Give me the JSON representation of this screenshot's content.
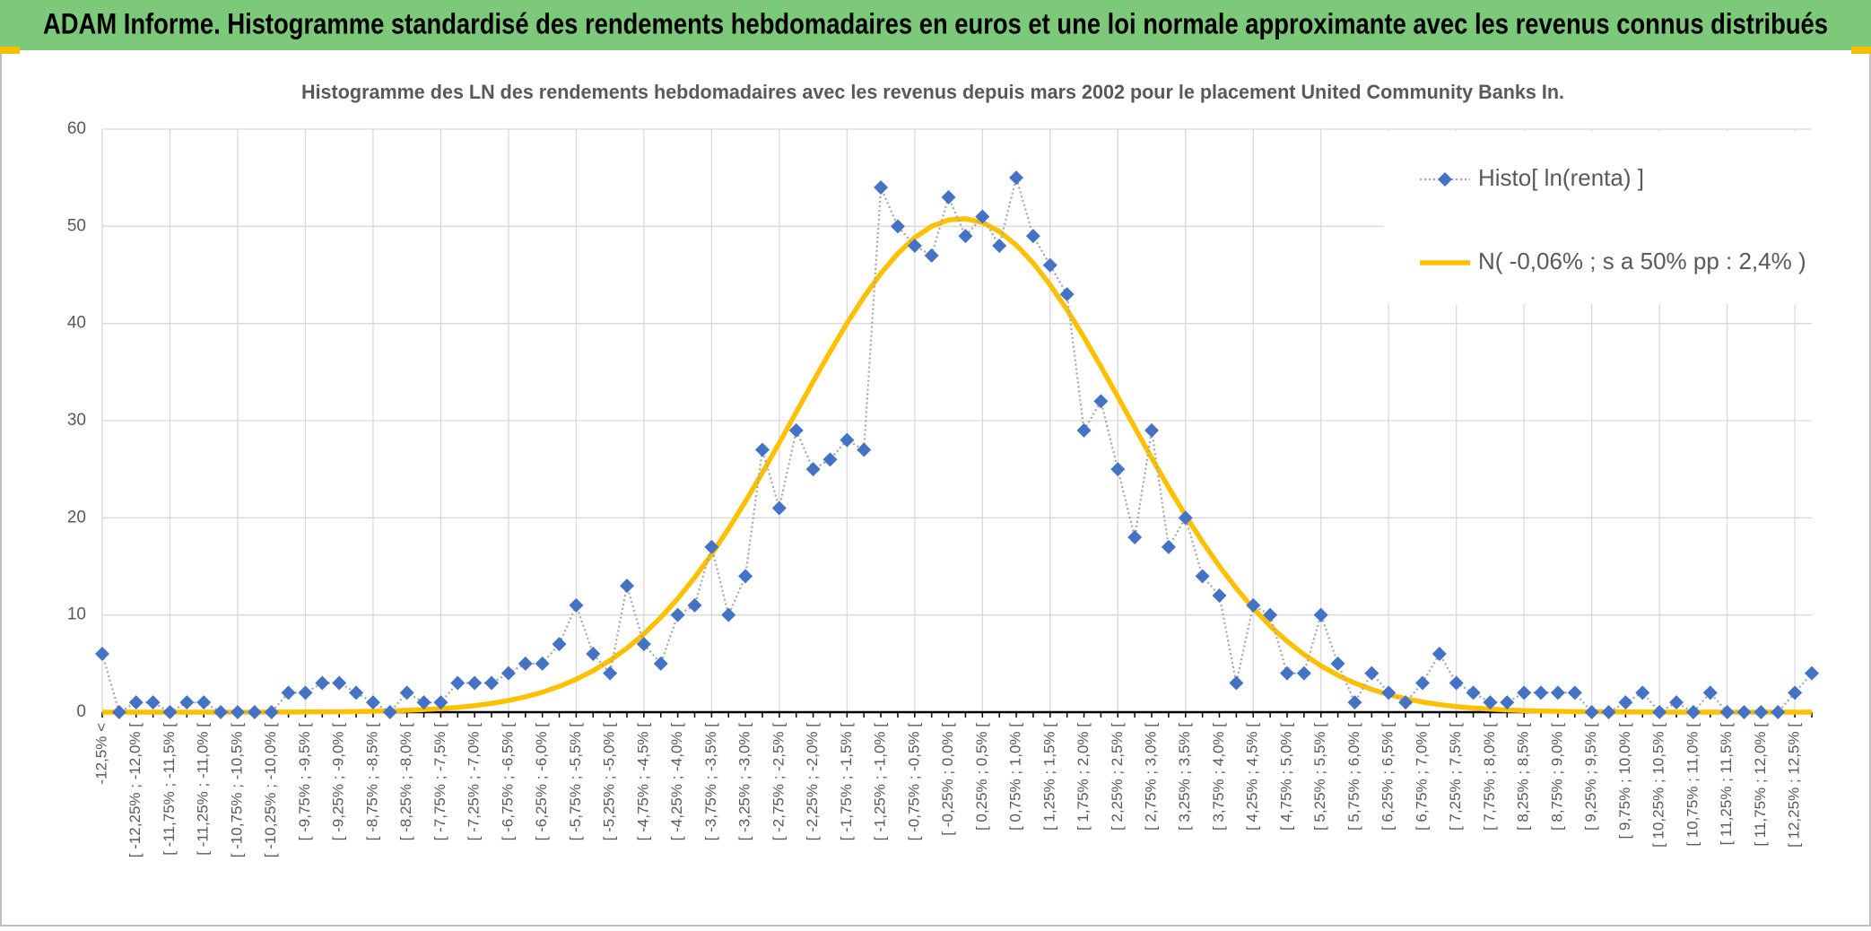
{
  "header": {
    "title": "ADAM Informe. Histogramme standardisé des rendements hebdomadaires en euros et une loi normale approximante avec les revenus connus distribués"
  },
  "chart_data": {
    "type": "line",
    "title": "Histogramme des LN des rendements hebdomadaires avec les revenus depuis mars 2002 pour le placement United Community Banks In.",
    "categories": [
      "-12,5% <",
      null,
      "[ -12,25% ; -12,0% [",
      null,
      "[ -11,75% ; -11,5% [",
      null,
      "[ -11,25% ; -11,0% [",
      null,
      "[ -10,75% ; -10,5% [",
      null,
      "[ -10,25% ; -10,0% [",
      null,
      "[ -9,75% ; -9,5% [",
      null,
      "[ -9,25% ; -9,0% [",
      null,
      "[ -8,75% ; -8,5% [",
      null,
      "[ -8,25% ; -8,0% [",
      null,
      "[ -7,75% ; -7,5% [",
      null,
      "[ -7,25% ; -7,0% [",
      null,
      "[ -6,75% ; -6,5% [",
      null,
      "[ -6,25% ; -6,0% [",
      null,
      "[ -5,75% ; -5,5% [",
      null,
      "[ -5,25% ; -5,0% [",
      null,
      "[ -4,75% ; -4,5% [",
      null,
      "[ -4,25% ; -4,0% [",
      null,
      "[ -3,75% ; -3,5% [",
      null,
      "[ -3,25% ; -3,0% [",
      null,
      "[ -2,75% ; -2,5% [",
      null,
      "[ -2,25% ; -2,0% [",
      null,
      "[ -1,75% ; -1,5% [",
      null,
      "[ -1,25% ; -1,0% [",
      null,
      "[ -0,75% ; -0,5% [",
      null,
      "[ -0,25% ; 0,0% [",
      null,
      "[ 0,25% ; 0,5% [",
      null,
      "[ 0,75% ; 1,0% [",
      null,
      "[ 1,25% ; 1,5% [",
      null,
      "[ 1,75% ; 2,0% [",
      null,
      "[ 2,25% ; 2,5% [",
      null,
      "[ 2,75% ; 3,0% [",
      null,
      "[ 3,25% ; 3,5% [",
      null,
      "[ 3,75% ; 4,0% [",
      null,
      "[ 4,25% ; 4,5% [",
      null,
      "[ 4,75% ; 5,0% [",
      null,
      "[ 5,25% ; 5,5% [",
      null,
      "[ 5,75% ; 6,0% [",
      null,
      "[ 6,25% ; 6,5% [",
      null,
      "[ 6,75% ; 7,0% [",
      null,
      "[ 7,25% ; 7,5% [",
      null,
      "[ 7,75% ; 8,0% [",
      null,
      "[ 8,25% ; 8,5% [",
      null,
      "[ 8,75% ; 9,0% [",
      null,
      "[ 9,25% ; 9,5% [",
      null,
      "[ 9,75% ; 10,0% [",
      null,
      "[ 10,25% ; 10,5% [",
      null,
      "[ 10,75% ; 11,0% [",
      null,
      "[ 11,25% ; 11,5% [",
      null,
      "[ 11,75% ; 12,0% [",
      null,
      "[ 12,25% ; 12,5% [",
      null
    ],
    "series": [
      {
        "name": "Histo[ ln(renta) ]",
        "color": "#4472c4",
        "line_color": "#a5a5a5",
        "marker": "diamond",
        "values": [
          6,
          0,
          1,
          1,
          0,
          1,
          1,
          0,
          0,
          0,
          0,
          2,
          2,
          3,
          3,
          2,
          1,
          0,
          2,
          1,
          1,
          3,
          3,
          3,
          4,
          5,
          5,
          7,
          11,
          6,
          4,
          13,
          7,
          5,
          10,
          11,
          17,
          10,
          14,
          27,
          21,
          29,
          25,
          26,
          28,
          27,
          54,
          50,
          48,
          47,
          53,
          49,
          51,
          48,
          55,
          49,
          46,
          43,
          29,
          32,
          25,
          18,
          29,
          17,
          20,
          14,
          12,
          3,
          11,
          10,
          4,
          4,
          10,
          5,
          1,
          4,
          2,
          1,
          3,
          6,
          3,
          2,
          1,
          1,
          2,
          2,
          2,
          2,
          0,
          0,
          1,
          2,
          0,
          1,
          0,
          2,
          0,
          0,
          0,
          0,
          2,
          4
        ]
      },
      {
        "name": "N( -0,06% ; s a 50% pp : 2,4% )",
        "color": "#ffc000",
        "marker": "none",
        "values": [
          0,
          0,
          0,
          0,
          0,
          0,
          0,
          0,
          0,
          0,
          0.01,
          0.01,
          0.02,
          0.03,
          0.04,
          0.06,
          0.09,
          0.13,
          0.19,
          0.26,
          0.36,
          0.49,
          0.67,
          0.9,
          1.2,
          1.58,
          2.05,
          2.65,
          3.38,
          4.26,
          5.33,
          6.58,
          8.05,
          9.75,
          11.68,
          13.85,
          16.25,
          18.87,
          21.68,
          24.64,
          27.72,
          30.87,
          34.02,
          37.09,
          40.02,
          42.73,
          45.15,
          47.2,
          48.83,
          50.0,
          50.65,
          50.78,
          50.39,
          49.47,
          48.07,
          46.22,
          43.98,
          41.41,
          38.58,
          35.57,
          32.45,
          29.29,
          26.17,
          23.14,
          20.25,
          17.53,
          15.02,
          12.74,
          10.69,
          8.87,
          7.29,
          5.93,
          4.77,
          3.8,
          2.99,
          2.34,
          1.8,
          1.38,
          1.04,
          0.78,
          0.58,
          0.42,
          0.31,
          0.22,
          0.16,
          0.11,
          0.08,
          0.05,
          0.04,
          0.02,
          0.02,
          0.01,
          0.01,
          0,
          0,
          0,
          0,
          0,
          0,
          0,
          0,
          0
        ]
      }
    ],
    "ylim": [
      0,
      60
    ],
    "yticks": [
      0,
      10,
      20,
      30,
      40,
      50,
      60
    ],
    "grid": true,
    "legend": "top-right"
  }
}
